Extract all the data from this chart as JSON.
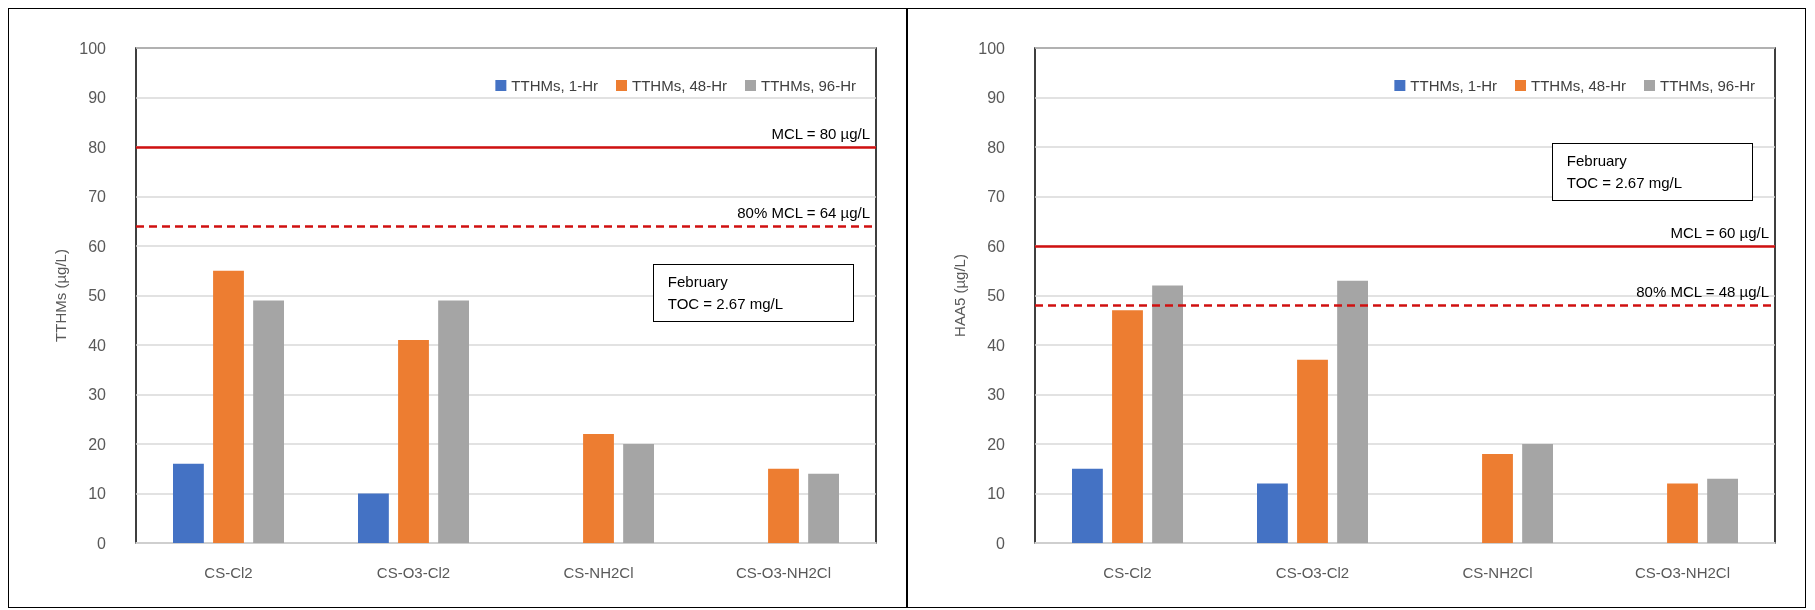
{
  "chart_data": [
    {
      "type": "bar",
      "ylabel": "TTHMs (µg/L)",
      "categories": [
        "CS-Cl2",
        "CS-O3-Cl2",
        "CS-NH2Cl",
        "CS-O3-NH2Cl"
      ],
      "series": [
        {
          "name": "TTHMs, 1-Hr",
          "color": "#4472c4",
          "values": [
            16,
            10,
            null,
            null
          ]
        },
        {
          "name": "TTHMs, 48-Hr",
          "color": "#ed7d31",
          "values": [
            55,
            41,
            22,
            15
          ]
        },
        {
          "name": "TTHMs, 96-Hr",
          "color": "#a5a5a5",
          "values": [
            49,
            49,
            20,
            14
          ]
        }
      ],
      "ylim": [
        0,
        100
      ],
      "yticks": [
        0,
        10,
        20,
        30,
        40,
        50,
        60,
        70,
        80,
        90,
        100
      ],
      "grid": "y",
      "legend": "top right",
      "ref_lines": [
        {
          "axis": "y",
          "value": 80,
          "label": "MCL = 80 µg/L",
          "color": "#d01010",
          "line_style": "solid"
        },
        {
          "axis": "y",
          "value": 64,
          "label": "80% MCL = 64 µg/L",
          "color": "#d01010",
          "line_style": "dashed"
        }
      ],
      "annotations": [
        "February\nTOC = 2.67 mg/L"
      ]
    },
    {
      "type": "bar",
      "ylabel": "HAA5 (µg/L)",
      "categories": [
        "CS-Cl2",
        "CS-O3-Cl2",
        "CS-NH2Cl",
        "CS-O3-NH2Cl"
      ],
      "series": [
        {
          "name": "TTHMs, 1-Hr",
          "color": "#4472c4",
          "values": [
            15,
            12,
            null,
            null
          ]
        },
        {
          "name": "TTHMs, 48-Hr",
          "color": "#ed7d31",
          "values": [
            47,
            37,
            18,
            12
          ]
        },
        {
          "name": "TTHMs, 96-Hr",
          "color": "#a5a5a5",
          "values": [
            52,
            53,
            20,
            13
          ]
        }
      ],
      "ylim": [
        0,
        100
      ],
      "yticks": [
        0,
        10,
        20,
        30,
        40,
        50,
        60,
        70,
        80,
        90,
        100
      ],
      "grid": "y",
      "legend": "top right",
      "ref_lines": [
        {
          "axis": "y",
          "value": 60,
          "label": "MCL = 60 µg/L",
          "color": "#d01010",
          "line_style": "solid"
        },
        {
          "axis": "y",
          "value": 48,
          "label": "80% MCL = 48 µg/L",
          "color": "#d01010",
          "line_style": "dashed"
        }
      ],
      "annotations": [
        "February\nTOC = 2.67 mg/L"
      ]
    }
  ]
}
